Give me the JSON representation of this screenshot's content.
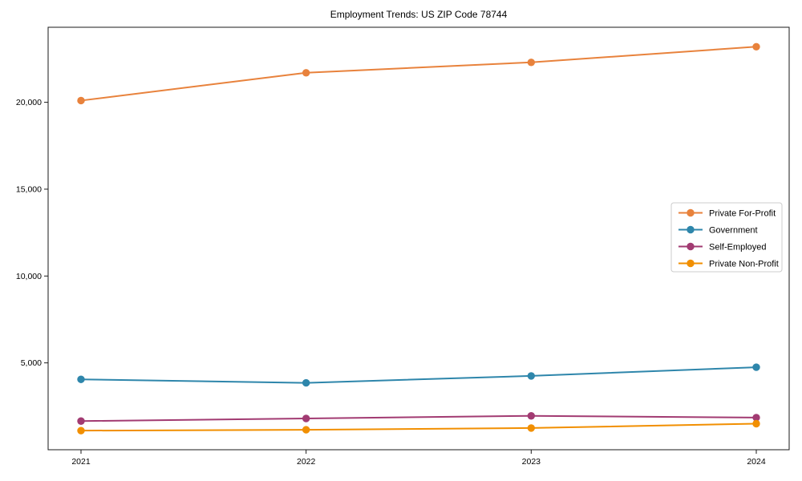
{
  "chart_data": {
    "type": "line",
    "title": "Employment Trends: US ZIP Code 78744",
    "x": [
      "2021",
      "2022",
      "2023",
      "2024"
    ],
    "series": [
      {
        "name": "Private For-Profit",
        "color": "#E8823C",
        "values": [
          20100,
          21700,
          22300,
          23200
        ]
      },
      {
        "name": "Government",
        "color": "#2E86AB",
        "values": [
          4050,
          3850,
          4250,
          4750
        ]
      },
      {
        "name": "Self-Employed",
        "color": "#A23B72",
        "values": [
          1650,
          1800,
          1950,
          1850
        ]
      },
      {
        "name": "Private Non-Profit",
        "color": "#F18F01",
        "values": [
          1100,
          1150,
          1250,
          1500
        ]
      }
    ],
    "xlabel": "",
    "ylabel": "",
    "ylim": [
      0,
      24320
    ],
    "yticks": [
      5000,
      10000,
      15000,
      20000
    ],
    "ytick_labels": [
      "5,000",
      "10,000",
      "15,000",
      "20,000"
    ],
    "grid": false,
    "legend_position": "center-right",
    "marker": "circle",
    "spine_color": "#1a1a1a",
    "legend_border_color": "#cccccc"
  }
}
